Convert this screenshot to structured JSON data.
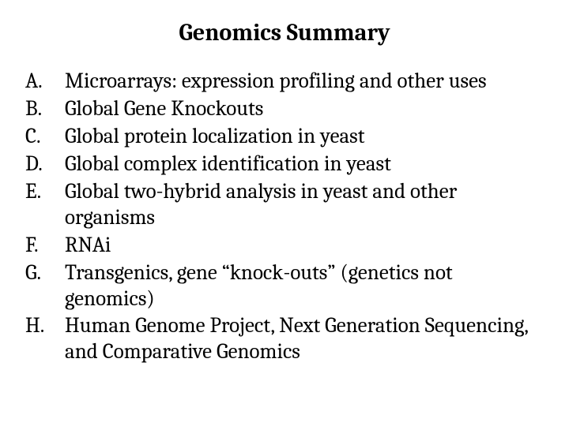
{
  "title": "Genomics Summary",
  "title_fontsize": 30,
  "item_fontsize": 27,
  "text_color": "#000000",
  "background_color": "#ffffff",
  "items": [
    {
      "marker": "A.",
      "text": "Microarrays: expression profiling and other uses"
    },
    {
      "marker": "B.",
      "text": "Global Gene Knockouts"
    },
    {
      "marker": "C.",
      "text": "Global protein localization in yeast"
    },
    {
      "marker": "D.",
      "text": "Global complex identification in yeast"
    },
    {
      "marker": "E.",
      "text": "Global two-hybrid analysis in yeast and other organisms"
    },
    {
      "marker": "F.",
      "text": "RNAi"
    },
    {
      "marker": "G.",
      "text": "Transgenics, gene “knock-outs” (genetics not genomics)"
    },
    {
      "marker": "H.",
      "text": "Human Genome Project, Next Generation Sequencing, and Comparative Genomics"
    }
  ]
}
